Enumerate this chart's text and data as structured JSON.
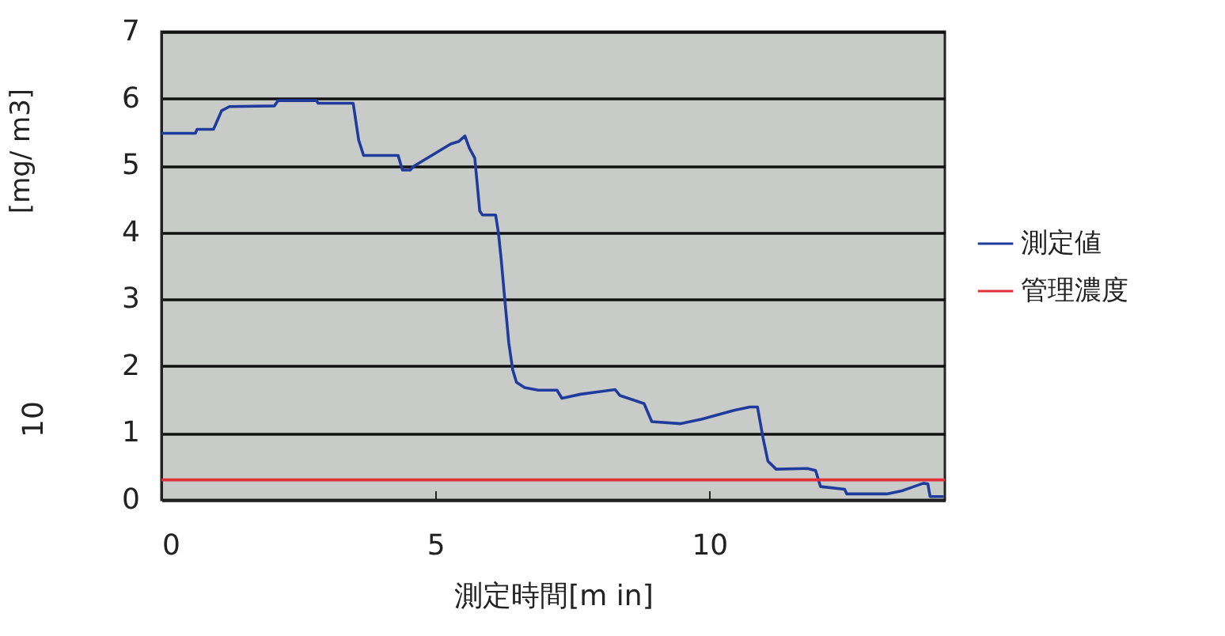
{
  "chart_data": {
    "type": "line",
    "xlabel": "測定時間[m in]",
    "ylabel": "[mg/ m3]",
    "annotations": [
      "10"
    ],
    "xlim": [
      0,
      14.3
    ],
    "xticks": [
      0,
      5,
      10
    ],
    "ylim": [
      0,
      7
    ],
    "yticks": [
      0,
      1,
      2,
      3,
      4,
      5,
      6,
      7
    ],
    "grid": "y",
    "legend": "right",
    "series": [
      {
        "name": "測定値",
        "color": "#1f3c9c",
        "x": [
          0,
          0.62,
          0.65,
          0.95,
          1.1,
          1.24,
          2.06,
          2.13,
          2.83,
          2.86,
          3.5,
          3.6,
          3.69,
          4.32,
          4.4,
          4.54,
          4.61,
          5.28,
          5.43,
          5.54,
          5.62,
          5.72,
          5.81,
          5.86,
          6.1,
          6.15,
          6.2,
          6.26,
          6.34,
          6.41,
          6.48,
          6.63,
          6.88,
          7.22,
          7.31,
          7.65,
          8.28,
          8.37,
          8.81,
          8.95,
          9.48,
          9.87,
          10.45,
          10.74,
          10.88,
          10.98,
          11.07,
          11.22,
          11.79,
          11.94,
          12.03,
          12.47,
          12.51,
          13.24,
          13.53,
          13.91,
          13.99,
          14.03,
          14.28
        ],
        "values": [
          5.48,
          5.48,
          5.54,
          5.54,
          5.82,
          5.88,
          5.89,
          5.97,
          5.97,
          5.93,
          5.93,
          5.38,
          5.15,
          5.15,
          4.93,
          4.93,
          4.99,
          5.32,
          5.36,
          5.44,
          5.26,
          5.11,
          4.32,
          4.26,
          4.26,
          4.0,
          3.61,
          3.06,
          2.35,
          1.95,
          1.76,
          1.68,
          1.64,
          1.64,
          1.52,
          1.58,
          1.65,
          1.56,
          1.44,
          1.17,
          1.14,
          1.21,
          1.34,
          1.39,
          1.39,
          0.93,
          0.58,
          0.46,
          0.47,
          0.44,
          0.2,
          0.16,
          0.09,
          0.09,
          0.14,
          0.25,
          0.24,
          0.05,
          0.05
        ]
      },
      {
        "name": "管理濃度",
        "color": "#e0303a",
        "x": [
          0,
          14.3
        ],
        "values": [
          0.3,
          0.3
        ]
      }
    ]
  }
}
